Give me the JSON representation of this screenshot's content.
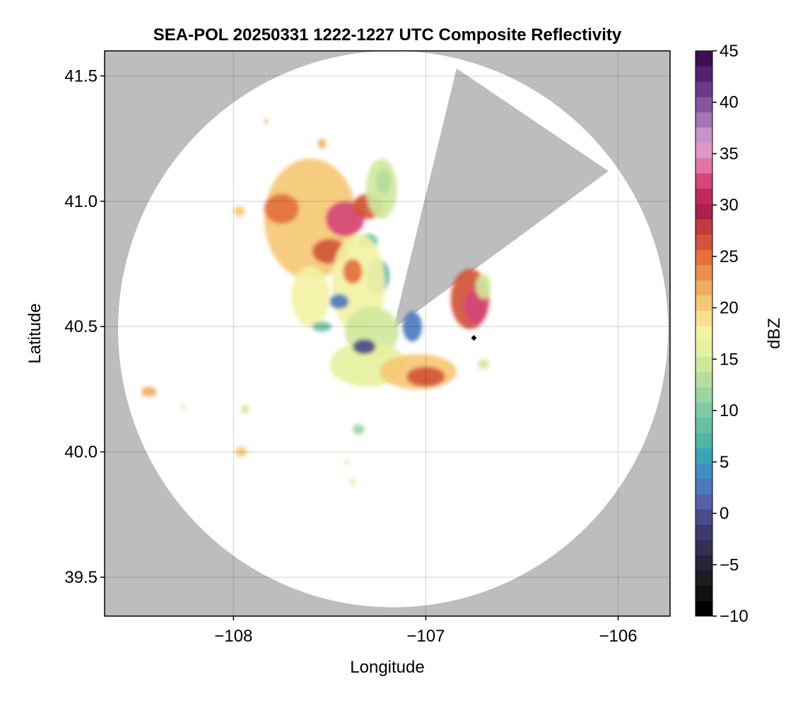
{
  "chart_data": {
    "type": "heatmap",
    "title": "SEA-POL 20250331 1222-1227 UTC Composite Reflectivity",
    "xlabel": "Longitude",
    "ylabel": "Latitude",
    "xlim": [
      -108.67,
      -105.73
    ],
    "ylim": [
      39.345,
      41.6
    ],
    "grid": true,
    "xticks": [
      {
        "value": -108,
        "label": "−108"
      },
      {
        "value": -107,
        "label": "−107"
      },
      {
        "value": -106,
        "label": "−106"
      }
    ],
    "yticks": [
      {
        "value": 39.5,
        "label": "39.5"
      },
      {
        "value": 40.0,
        "label": "40.0"
      },
      {
        "value": 40.5,
        "label": "40.5"
      },
      {
        "value": 41.0,
        "label": "41.0"
      },
      {
        "value": 41.5,
        "label": "41.5"
      }
    ],
    "radar_center": {
      "lon": -107.17,
      "lat": 40.49
    },
    "radar_range_deg": {
      "lon": 1.43,
      "lat": 1.11
    },
    "blocked_sectors": [
      {
        "from_lon": -106.84,
        "from_lat": 41.53,
        "to_lon": -106.05,
        "to_lat": 41.12
      }
    ],
    "marker": {
      "lon": -106.75,
      "lat": 40.455,
      "symbol": "diamond"
    },
    "echo_cells": [
      {
        "lon": -107.6,
        "lat": 40.93,
        "rlon": 0.24,
        "rlat": 0.24,
        "dbz": 20
      },
      {
        "lon": -107.42,
        "lat": 40.93,
        "rlon": 0.1,
        "rlat": 0.07,
        "dbz": 33
      },
      {
        "lon": -107.75,
        "lat": 40.97,
        "rlon": 0.09,
        "rlat": 0.06,
        "dbz": 25
      },
      {
        "lon": -107.5,
        "lat": 40.8,
        "rlon": 0.09,
        "rlat": 0.05,
        "dbz": 26
      },
      {
        "lon": -107.3,
        "lat": 40.98,
        "rlon": 0.08,
        "rlat": 0.05,
        "dbz": 26
      },
      {
        "lon": -107.23,
        "lat": 41.05,
        "rlon": 0.08,
        "rlat": 0.12,
        "dbz": 15
      },
      {
        "lon": -107.22,
        "lat": 41.08,
        "rlon": 0.04,
        "rlat": 0.05,
        "dbz": 13
      },
      {
        "lon": -107.25,
        "lat": 40.7,
        "rlon": 0.06,
        "rlat": 0.07,
        "dbz": 6
      },
      {
        "lon": -107.3,
        "lat": 40.84,
        "rlon": 0.05,
        "rlat": 0.03,
        "dbz": 8
      },
      {
        "lon": -107.6,
        "lat": 40.62,
        "rlon": 0.1,
        "rlat": 0.12,
        "dbz": 17
      },
      {
        "lon": -107.35,
        "lat": 40.67,
        "rlon": 0.14,
        "rlat": 0.2,
        "dbz": 18
      },
      {
        "lon": -107.38,
        "lat": 40.72,
        "rlon": 0.05,
        "rlat": 0.05,
        "dbz": 25
      },
      {
        "lon": -107.45,
        "lat": 40.6,
        "rlon": 0.05,
        "rlat": 0.03,
        "dbz": 2
      },
      {
        "lon": -107.28,
        "lat": 40.48,
        "rlon": 0.14,
        "rlat": 0.1,
        "dbz": 15
      },
      {
        "lon": -107.3,
        "lat": 40.35,
        "rlon": 0.2,
        "rlat": 0.09,
        "dbz": 16
      },
      {
        "lon": -107.04,
        "lat": 40.32,
        "rlon": 0.2,
        "rlat": 0.07,
        "dbz": 20
      },
      {
        "lon": -107.0,
        "lat": 40.3,
        "rlon": 0.1,
        "rlat": 0.04,
        "dbz": 26
      },
      {
        "lon": -107.32,
        "lat": 40.42,
        "rlon": 0.06,
        "rlat": 0.03,
        "dbz": 0
      },
      {
        "lon": -107.07,
        "lat": 40.5,
        "rlon": 0.05,
        "rlat": 0.06,
        "dbz": 2
      },
      {
        "lon": -106.77,
        "lat": 40.61,
        "rlon": 0.1,
        "rlat": 0.12,
        "dbz": 26
      },
      {
        "lon": -106.74,
        "lat": 40.58,
        "rlon": 0.06,
        "rlat": 0.07,
        "dbz": 32
      },
      {
        "lon": -106.7,
        "lat": 40.66,
        "rlon": 0.04,
        "rlat": 0.05,
        "dbz": 15
      },
      {
        "lon": -107.54,
        "lat": 40.5,
        "rlon": 0.05,
        "rlat": 0.02,
        "dbz": 9
      },
      {
        "lon": -107.97,
        "lat": 40.96,
        "rlon": 0.03,
        "rlat": 0.02,
        "dbz": 20
      },
      {
        "lon": -107.54,
        "lat": 41.23,
        "rlon": 0.02,
        "rlat": 0.02,
        "dbz": 22
      },
      {
        "lon": -107.83,
        "lat": 41.32,
        "rlon": 0.01,
        "rlat": 0.01,
        "dbz": 22
      },
      {
        "lon": -108.44,
        "lat": 40.24,
        "rlon": 0.04,
        "rlat": 0.02,
        "dbz": 22
      },
      {
        "lon": -107.96,
        "lat": 40.0,
        "rlon": 0.03,
        "rlat": 0.02,
        "dbz": 21
      },
      {
        "lon": -107.94,
        "lat": 40.17,
        "rlon": 0.02,
        "rlat": 0.02,
        "dbz": 15
      },
      {
        "lon": -107.35,
        "lat": 40.09,
        "rlon": 0.03,
        "rlat": 0.02,
        "dbz": 12
      },
      {
        "lon": -106.7,
        "lat": 40.35,
        "rlon": 0.03,
        "rlat": 0.02,
        "dbz": 15
      },
      {
        "lon": -108.26,
        "lat": 40.18,
        "rlon": 0.01,
        "rlat": 0.01,
        "dbz": 15
      },
      {
        "lon": -107.41,
        "lat": 39.96,
        "rlon": 0.01,
        "rlat": 0.01,
        "dbz": 15
      },
      {
        "lon": -107.38,
        "lat": 39.88,
        "rlon": 0.01,
        "rlat": 0.01,
        "dbz": 20
      }
    ],
    "colorbar": {
      "label": "dBZ",
      "range": [
        -10,
        45
      ],
      "ticks": [
        {
          "value": -10,
          "label": "−10"
        },
        {
          "value": -5,
          "label": "−5"
        },
        {
          "value": 0,
          "label": "0"
        },
        {
          "value": 5,
          "label": "5"
        },
        {
          "value": 10,
          "label": "10"
        },
        {
          "value": 15,
          "label": "15"
        },
        {
          "value": 20,
          "label": "20"
        },
        {
          "value": 25,
          "label": "25"
        },
        {
          "value": 30,
          "label": "30"
        },
        {
          "value": 35,
          "label": "35"
        },
        {
          "value": 40,
          "label": "40"
        },
        {
          "value": 45,
          "label": "45"
        }
      ],
      "colors": [
        "#000000",
        "#121212",
        "#1c1c24",
        "#26263a",
        "#332f55",
        "#3d3a6e",
        "#4a4a8c",
        "#5860a8",
        "#4d79bd",
        "#3f8fc1",
        "#3aa3b5",
        "#4db6a5",
        "#66c0a3",
        "#80c9a1",
        "#9bd4a0",
        "#b6dd9f",
        "#d0e89c",
        "#e6f1a0",
        "#f2f2a5",
        "#f6e08e",
        "#f5c874",
        "#f1ad5f",
        "#ec8f4d",
        "#e3703f",
        "#d45238",
        "#c13a3d",
        "#a8224b",
        "#c2285e",
        "#d5457a",
        "#e076a8",
        "#dd98c6",
        "#c993c8",
        "#a576b6",
        "#84579e",
        "#6a3a89",
        "#52236f",
        "#3d0f55"
      ]
    },
    "colors": {
      "background": "#bdbdbd",
      "coverage": "#ffffff",
      "grid": "#d9d9d9"
    }
  }
}
